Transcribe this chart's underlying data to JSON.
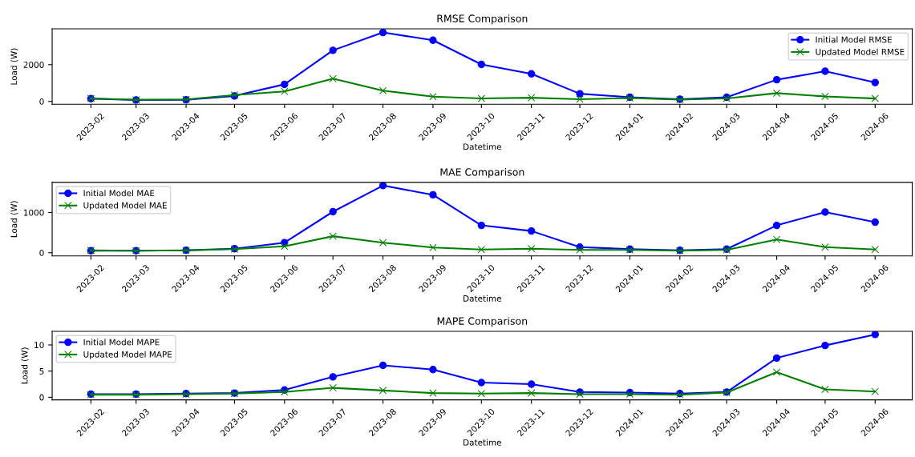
{
  "chart_data": [
    {
      "type": "line",
      "title": "RMSE Comparison",
      "xlabel": "Datetime",
      "ylabel": "Load (W)",
      "legend": "top right",
      "grid": false,
      "x": [
        "2023-02",
        "2023-03",
        "2023-04",
        "2023-05",
        "2023-06",
        "2023-07",
        "2023-08",
        "2023-09",
        "2023-10",
        "2023-11",
        "2023-12",
        "2024-01",
        "2024-02",
        "2024-03",
        "2024-04",
        "2024-05",
        "2024-06"
      ],
      "xlim": [
        "2023-01-08",
        "2024-06-24"
      ],
      "xticks": [
        "2023-02",
        "2023-03",
        "2023-04",
        "2023-05",
        "2023-06",
        "2023-07",
        "2023-08",
        "2023-09",
        "2023-10",
        "2023-11",
        "2023-12",
        "2024-01",
        "2024-02",
        "2024-03",
        "2024-04",
        "2024-05",
        "2024-06"
      ],
      "ylim": [
        -150,
        3950
      ],
      "yticks": [
        0,
        2000
      ],
      "series": [
        {
          "name": "Initial Model RMSE",
          "color": "#0000ff",
          "marker": "circle",
          "values": [
            150,
            80,
            90,
            300,
            930,
            2780,
            3750,
            3330,
            2010,
            1500,
            420,
            230,
            120,
            230,
            1180,
            1640,
            1030
          ]
        },
        {
          "name": "Updated Model RMSE",
          "color": "#008000",
          "marker": "cross",
          "values": [
            160,
            90,
            110,
            350,
            540,
            1240,
            590,
            260,
            160,
            200,
            120,
            190,
            100,
            160,
            450,
            270,
            160
          ]
        }
      ]
    },
    {
      "type": "line",
      "title": "MAE Comparison",
      "xlabel": "Datetime",
      "ylabel": "Load (W)",
      "legend": "top left",
      "grid": false,
      "x": [
        "2023-02",
        "2023-03",
        "2023-04",
        "2023-05",
        "2023-06",
        "2023-07",
        "2023-08",
        "2023-09",
        "2023-10",
        "2023-11",
        "2023-12",
        "2024-01",
        "2024-02",
        "2024-03",
        "2024-04",
        "2024-05",
        "2024-06"
      ],
      "xlim": [
        "2023-01-08",
        "2024-06-24"
      ],
      "xticks": [
        "2023-02",
        "2023-03",
        "2023-04",
        "2023-05",
        "2023-06",
        "2023-07",
        "2023-08",
        "2023-09",
        "2023-10",
        "2023-11",
        "2023-12",
        "2024-01",
        "2024-02",
        "2024-03",
        "2024-04",
        "2024-05",
        "2024-06"
      ],
      "ylim": [
        -80,
        1750
      ],
      "yticks": [
        0,
        1000
      ],
      "series": [
        {
          "name": "Initial Model MAE",
          "color": "#0000ff",
          "marker": "circle",
          "values": [
            50,
            50,
            60,
            100,
            250,
            1020,
            1670,
            1440,
            680,
            540,
            140,
            90,
            60,
            90,
            680,
            1010,
            760
          ]
        },
        {
          "name": "Updated Model MAE",
          "color": "#008000",
          "marker": "cross",
          "values": [
            60,
            50,
            60,
            90,
            160,
            410,
            250,
            130,
            80,
            100,
            70,
            70,
            50,
            70,
            330,
            140,
            80
          ]
        }
      ]
    },
    {
      "type": "line",
      "title": "MAPE Comparison",
      "xlabel": "Datetime",
      "ylabel": "Load (W)",
      "legend": "top left",
      "grid": false,
      "x": [
        "2023-02",
        "2023-03",
        "2023-04",
        "2023-05",
        "2023-06",
        "2023-07",
        "2023-08",
        "2023-09",
        "2023-10",
        "2023-11",
        "2023-12",
        "2024-01",
        "2024-02",
        "2024-03",
        "2024-04",
        "2024-05",
        "2024-06"
      ],
      "xlim": [
        "2023-01-08",
        "2024-06-24"
      ],
      "xticks": [
        "2023-02",
        "2023-03",
        "2023-04",
        "2023-05",
        "2023-06",
        "2023-07",
        "2023-08",
        "2023-09",
        "2023-10",
        "2023-11",
        "2023-12",
        "2024-01",
        "2024-02",
        "2024-03",
        "2024-04",
        "2024-05",
        "2024-06"
      ],
      "ylim": [
        -0.5,
        12.6
      ],
      "yticks": [
        0,
        5,
        10
      ],
      "series": [
        {
          "name": "Initial Model MAPE",
          "color": "#0000ff",
          "marker": "circle",
          "values": [
            0.6,
            0.6,
            0.7,
            0.8,
            1.4,
            3.9,
            6.1,
            5.3,
            2.8,
            2.5,
            1.0,
            0.9,
            0.7,
            1.0,
            7.5,
            9.9,
            12.0
          ]
        },
        {
          "name": "Updated Model MAPE",
          "color": "#008000",
          "marker": "cross",
          "values": [
            0.5,
            0.5,
            0.6,
            0.7,
            1.0,
            1.8,
            1.3,
            0.8,
            0.7,
            0.8,
            0.6,
            0.6,
            0.5,
            0.9,
            4.8,
            1.5,
            1.1
          ]
        }
      ]
    }
  ]
}
